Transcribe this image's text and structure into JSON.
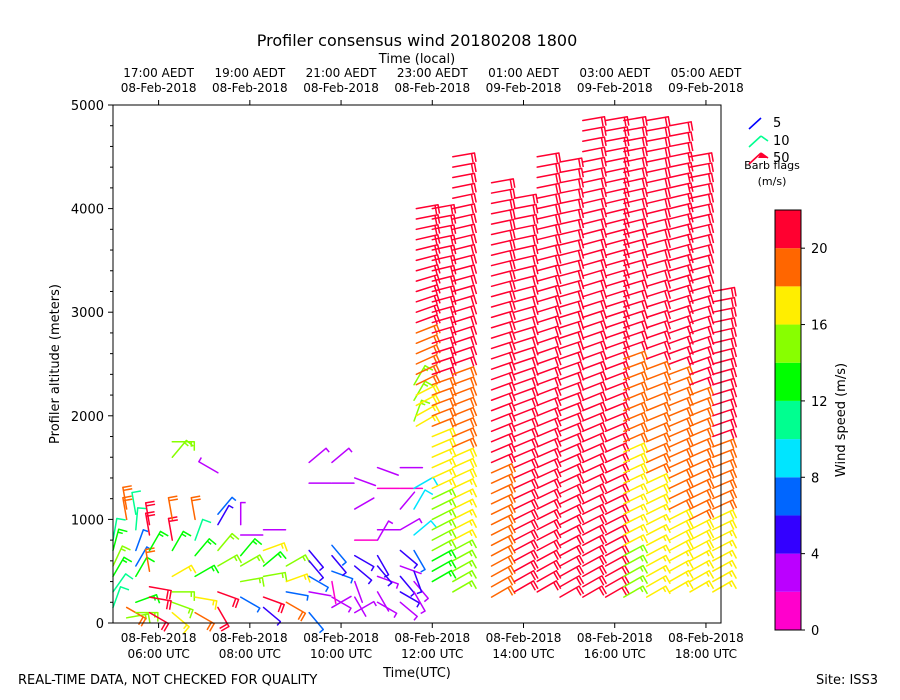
{
  "chart_data": {
    "type": "wind-barb-profile",
    "title": "Profiler consensus wind 20180208 1800",
    "top_axis_label": "Time (local)",
    "xlabel": "Time(UTC)",
    "ylabel": "Profiler altitude (meters)",
    "x_range_hours_utc": [
      5.0,
      18.33
    ],
    "ylim": [
      0,
      5000
    ],
    "y_ticks": [
      0,
      1000,
      2000,
      3000,
      4000,
      5000
    ],
    "bottom_ticks": [
      {
        "hour": 6,
        "date": "08-Feb-2018",
        "time": "06:00 UTC"
      },
      {
        "hour": 8,
        "date": "08-Feb-2018",
        "time": "08:00 UTC"
      },
      {
        "hour": 10,
        "date": "08-Feb-2018",
        "time": "10:00 UTC"
      },
      {
        "hour": 12,
        "date": "08-Feb-2018",
        "time": "12:00 UTC"
      },
      {
        "hour": 14,
        "date": "08-Feb-2018",
        "time": "14:00 UTC"
      },
      {
        "hour": 16,
        "date": "08-Feb-2018",
        "time": "16:00 UTC"
      },
      {
        "hour": 18,
        "date": "08-Feb-2018",
        "time": "18:00 UTC"
      }
    ],
    "top_ticks": [
      {
        "hour": 6,
        "time": "17:00 AEDT",
        "date": "08-Feb-2018"
      },
      {
        "hour": 8,
        "time": "19:00 AEDT",
        "date": "08-Feb-2018"
      },
      {
        "hour": 10,
        "time": "21:00 AEDT",
        "date": "08-Feb-2018"
      },
      {
        "hour": 12,
        "time": "23:00 AEDT",
        "date": "08-Feb-2018"
      },
      {
        "hour": 14,
        "time": "01:00 AEDT",
        "date": "09-Feb-2018"
      },
      {
        "hour": 16,
        "time": "03:00 AEDT",
        "date": "09-Feb-2018"
      },
      {
        "hour": 18,
        "time": "05:00 AEDT",
        "date": "09-Feb-2018"
      }
    ],
    "barb_legend": {
      "title_line1": "Barb flags",
      "title_line2": "(m/s)",
      "items": [
        {
          "label": "5",
          "color": "#0000ff"
        },
        {
          "label": "10",
          "color": "#00ff90"
        },
        {
          "label": "50",
          "color": "#ff0030"
        }
      ]
    },
    "colorbar": {
      "label": "Wind speed (m/s)",
      "range": [
        0,
        22
      ],
      "ticks": [
        0,
        4,
        8,
        12,
        16,
        20
      ],
      "bins": [
        {
          "from": 0,
          "to": 2,
          "color": "#ff00cc"
        },
        {
          "from": 2,
          "to": 4,
          "color": "#bb00ff"
        },
        {
          "from": 4,
          "to": 6,
          "color": "#3300ff"
        },
        {
          "from": 6,
          "to": 8,
          "color": "#0066ff"
        },
        {
          "from": 8,
          "to": 10,
          "color": "#00e5ff"
        },
        {
          "from": 10,
          "to": 12,
          "color": "#00ff90"
        },
        {
          "from": 12,
          "to": 14,
          "color": "#00ff00"
        },
        {
          "from": 14,
          "to": 16,
          "color": "#88ff00"
        },
        {
          "from": 16,
          "to": 18,
          "color": "#ffee00"
        },
        {
          "from": 18,
          "to": 20,
          "color": "#ff6600"
        },
        {
          "from": 20,
          "to": 22,
          "color": "#ff0030"
        }
      ]
    },
    "profiles": [
      {
        "hour": 5.0,
        "levels": [
          [
            150,
            10,
            20
          ],
          [
            300,
            11,
            35
          ],
          [
            450,
            13,
            30
          ],
          [
            550,
            14,
            25
          ],
          [
            700,
            13,
            15
          ],
          [
            800,
            11,
            10
          ]
        ]
      },
      {
        "hour": 5.3,
        "levels": [
          [
            50,
            14,
            80
          ],
          [
            150,
            19,
            120
          ],
          [
            1000,
            18,
            350
          ],
          [
            1100,
            18,
            350
          ]
        ]
      },
      {
        "hour": 5.5,
        "levels": [
          [
            100,
            14,
            90
          ],
          [
            200,
            13,
            70
          ],
          [
            450,
            12,
            30
          ],
          [
            550,
            7,
            30
          ],
          [
            700,
            7,
            20
          ],
          [
            900,
            10,
            5
          ],
          [
            1050,
            10,
            350
          ]
        ]
      },
      {
        "hour": 5.8,
        "levels": [
          [
            100,
            20,
            120
          ],
          [
            250,
            20,
            100
          ],
          [
            350,
            20,
            100
          ],
          [
            500,
            18,
            350
          ],
          [
            700,
            13,
            30
          ],
          [
            850,
            20,
            350
          ],
          [
            950,
            20,
            350
          ]
        ]
      },
      {
        "hour": 6.3,
        "levels": [
          [
            100,
            17,
            130
          ],
          [
            200,
            15,
            110
          ],
          [
            300,
            14,
            90
          ],
          [
            450,
            16,
            60
          ],
          [
            700,
            13,
            30
          ],
          [
            800,
            20,
            350
          ],
          [
            1000,
            19,
            350
          ],
          [
            1600,
            14,
            40
          ],
          [
            1750,
            14,
            90
          ]
        ]
      },
      {
        "hour": 6.8,
        "levels": [
          [
            100,
            18,
            120
          ],
          [
            250,
            16,
            100
          ],
          [
            450,
            13,
            60
          ],
          [
            650,
            13,
            40
          ],
          [
            800,
            11,
            20
          ],
          [
            1000,
            19,
            350
          ]
        ]
      },
      {
        "hour": 7.3,
        "levels": [
          [
            150,
            20,
            150
          ],
          [
            300,
            20,
            110
          ],
          [
            550,
            15,
            60
          ],
          [
            700,
            14,
            40
          ],
          [
            950,
            5,
            30
          ],
          [
            1050,
            6,
            40
          ],
          [
            1450,
            3,
            300
          ]
        ]
      },
      {
        "hour": 7.8,
        "levels": [
          [
            250,
            6,
            120
          ],
          [
            400,
            14,
            80
          ],
          [
            550,
            15,
            60
          ],
          [
            650,
            13,
            40
          ],
          [
            850,
            2,
            90
          ],
          [
            950,
            3,
            0
          ]
        ]
      },
      {
        "hour": 8.3,
        "levels": [
          [
            150,
            4,
            130
          ],
          [
            250,
            20,
            110
          ],
          [
            450,
            15,
            80
          ],
          [
            550,
            13,
            50
          ],
          [
            700,
            16,
            70
          ],
          [
            900,
            2,
            90
          ]
        ]
      },
      {
        "hour": 8.8,
        "levels": [
          [
            200,
            19,
            120
          ],
          [
            300,
            7,
            100
          ],
          [
            400,
            16,
            70
          ],
          [
            550,
            14,
            60
          ]
        ]
      },
      {
        "hour": 9.3,
        "levels": [
          [
            100,
            6,
            140
          ],
          [
            300,
            2,
            100
          ],
          [
            450,
            7,
            120
          ],
          [
            600,
            5,
            140
          ],
          [
            700,
            5,
            140
          ],
          [
            1350,
            2,
            90
          ],
          [
            1550,
            3,
            50
          ]
        ]
      },
      {
        "hour": 9.8,
        "levels": [
          [
            150,
            2,
            60
          ],
          [
            250,
            3,
            120
          ],
          [
            400,
            1,
            170
          ],
          [
            500,
            7,
            110
          ],
          [
            650,
            5,
            140
          ],
          [
            750,
            6,
            140
          ],
          [
            1350,
            2,
            90
          ],
          [
            1550,
            3,
            50
          ]
        ]
      },
      {
        "hour": 10.3,
        "levels": [
          [
            100,
            3,
            60
          ],
          [
            250,
            2,
            150
          ],
          [
            400,
            2,
            160
          ],
          [
            550,
            4,
            130
          ],
          [
            650,
            4,
            120
          ],
          [
            800,
            1,
            90
          ],
          [
            1100,
            2,
            60
          ],
          [
            1400,
            2,
            110
          ]
        ]
      },
      {
        "hour": 10.8,
        "levels": [
          [
            200,
            3,
            120
          ],
          [
            300,
            2,
            150
          ],
          [
            450,
            3,
            110
          ],
          [
            550,
            4,
            140
          ],
          [
            650,
            4,
            150
          ],
          [
            800,
            3,
            30
          ],
          [
            900,
            2,
            90
          ],
          [
            1300,
            1,
            90
          ],
          [
            1500,
            2,
            110
          ]
        ]
      },
      {
        "hour": 11.3,
        "levels": [
          [
            200,
            3,
            130
          ],
          [
            300,
            4,
            120
          ],
          [
            450,
            5,
            140
          ],
          [
            550,
            2,
            110
          ],
          [
            700,
            4,
            130
          ],
          [
            900,
            3,
            60
          ],
          [
            1100,
            2,
            40
          ],
          [
            1300,
            1,
            90
          ],
          [
            1500,
            2,
            90
          ]
        ]
      },
      {
        "hour": 11.6,
        "levels": [
          [
            300,
            3,
            150
          ],
          [
            400,
            3,
            140
          ],
          [
            500,
            5,
            160
          ],
          [
            700,
            7,
            150
          ],
          [
            850,
            9,
            50
          ],
          [
            1100,
            9,
            30
          ],
          [
            1300,
            9,
            60
          ],
          [
            1950,
            15,
            20
          ],
          [
            2150,
            15,
            30
          ],
          [
            2300,
            15,
            30
          ]
        ]
      },
      {
        "hour": 12.0,
        "levels": []
      },
      {
        "hour": 12.4,
        "levels": []
      },
      {
        "hour": 12.8,
        "levels": []
      },
      {
        "hour": 13.3,
        "levels": []
      },
      {
        "hour": 13.8,
        "levels": []
      },
      {
        "hour": 14.3,
        "levels": []
      },
      {
        "hour": 14.8,
        "levels": []
      },
      {
        "hour": 15.3,
        "levels": []
      },
      {
        "hour": 15.8,
        "levels": []
      },
      {
        "hour": 16.3,
        "levels": []
      },
      {
        "hour": 16.8,
        "levels": []
      },
      {
        "hour": 17.3,
        "levels": []
      },
      {
        "hour": 17.8,
        "levels": []
      },
      {
        "hour": 18.2,
        "levels": []
      }
    ],
    "dense_columns": [
      {
        "hour": 11.65,
        "from": 1900,
        "to": 4000,
        "speed_low": 17,
        "speed_high": 21
      },
      {
        "hour": 12.0,
        "from": 400,
        "to": 4050,
        "speed_low": 13,
        "speed_high": 21
      },
      {
        "hour": 12.45,
        "from": 300,
        "to": 4500,
        "speed_low": 15,
        "speed_high": 21
      },
      {
        "hour": 13.3,
        "from": 250,
        "to": 4250,
        "speed_low": 19,
        "speed_high": 21
      },
      {
        "hour": 13.8,
        "from": 300,
        "to": 4150,
        "speed_low": 21,
        "speed_high": 21
      },
      {
        "hour": 14.3,
        "from": 300,
        "to": 4500,
        "speed_low": 21,
        "speed_high": 21
      },
      {
        "hour": 14.8,
        "from": 250,
        "to": 4450,
        "speed_low": 21,
        "speed_high": 21
      },
      {
        "hour": 15.3,
        "from": 250,
        "to": 4850,
        "speed_low": 21,
        "speed_high": 21
      },
      {
        "hour": 15.8,
        "from": 250,
        "to": 4850,
        "speed_low": 21,
        "speed_high": 21
      },
      {
        "hour": 16.2,
        "from": 250,
        "to": 4850,
        "speed_low": 15,
        "speed_high": 21
      },
      {
        "hour": 16.7,
        "from": 250,
        "to": 4850,
        "speed_low": 16,
        "speed_high": 21
      },
      {
        "hour": 17.2,
        "from": 300,
        "to": 4850,
        "speed_low": 17,
        "speed_high": 21
      },
      {
        "hour": 17.65,
        "from": 300,
        "to": 4550,
        "speed_low": 17,
        "speed_high": 21
      },
      {
        "hour": 18.15,
        "from": 300,
        "to": 3250,
        "speed_low": 16,
        "speed_high": 21
      }
    ]
  },
  "footer": {
    "left": "REAL-TIME DATA, NOT CHECKED FOR QUALITY",
    "right": "Site: ISS3"
  }
}
